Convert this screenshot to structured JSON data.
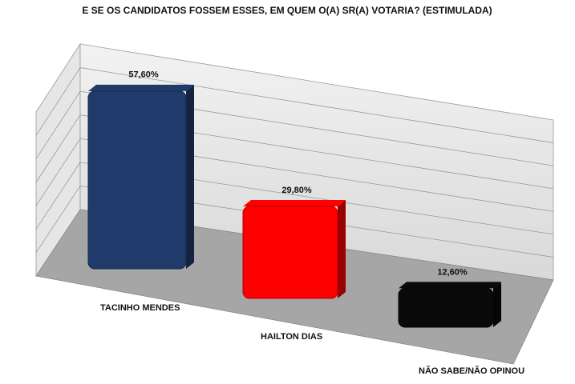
{
  "chart_data": {
    "type": "bar3d",
    "title": "E SE OS CANDIDATOS FOSSEM ESSES, EM QUEM O(A) SR(A) VOTARIA? (ESTIMULADA)",
    "categories": [
      "TACINHO MENDES",
      "HAILTON DIAS",
      "NÃO SABE/NÃO OPINOU"
    ],
    "values": [
      57.6,
      29.8,
      12.6
    ],
    "value_labels": [
      "57,60%",
      "29,80%",
      "12,60%"
    ],
    "colors": [
      "#1f3a6b",
      "#ff0000",
      "#0a0a0a"
    ],
    "ylim": [
      0,
      70
    ],
    "grid": true
  }
}
